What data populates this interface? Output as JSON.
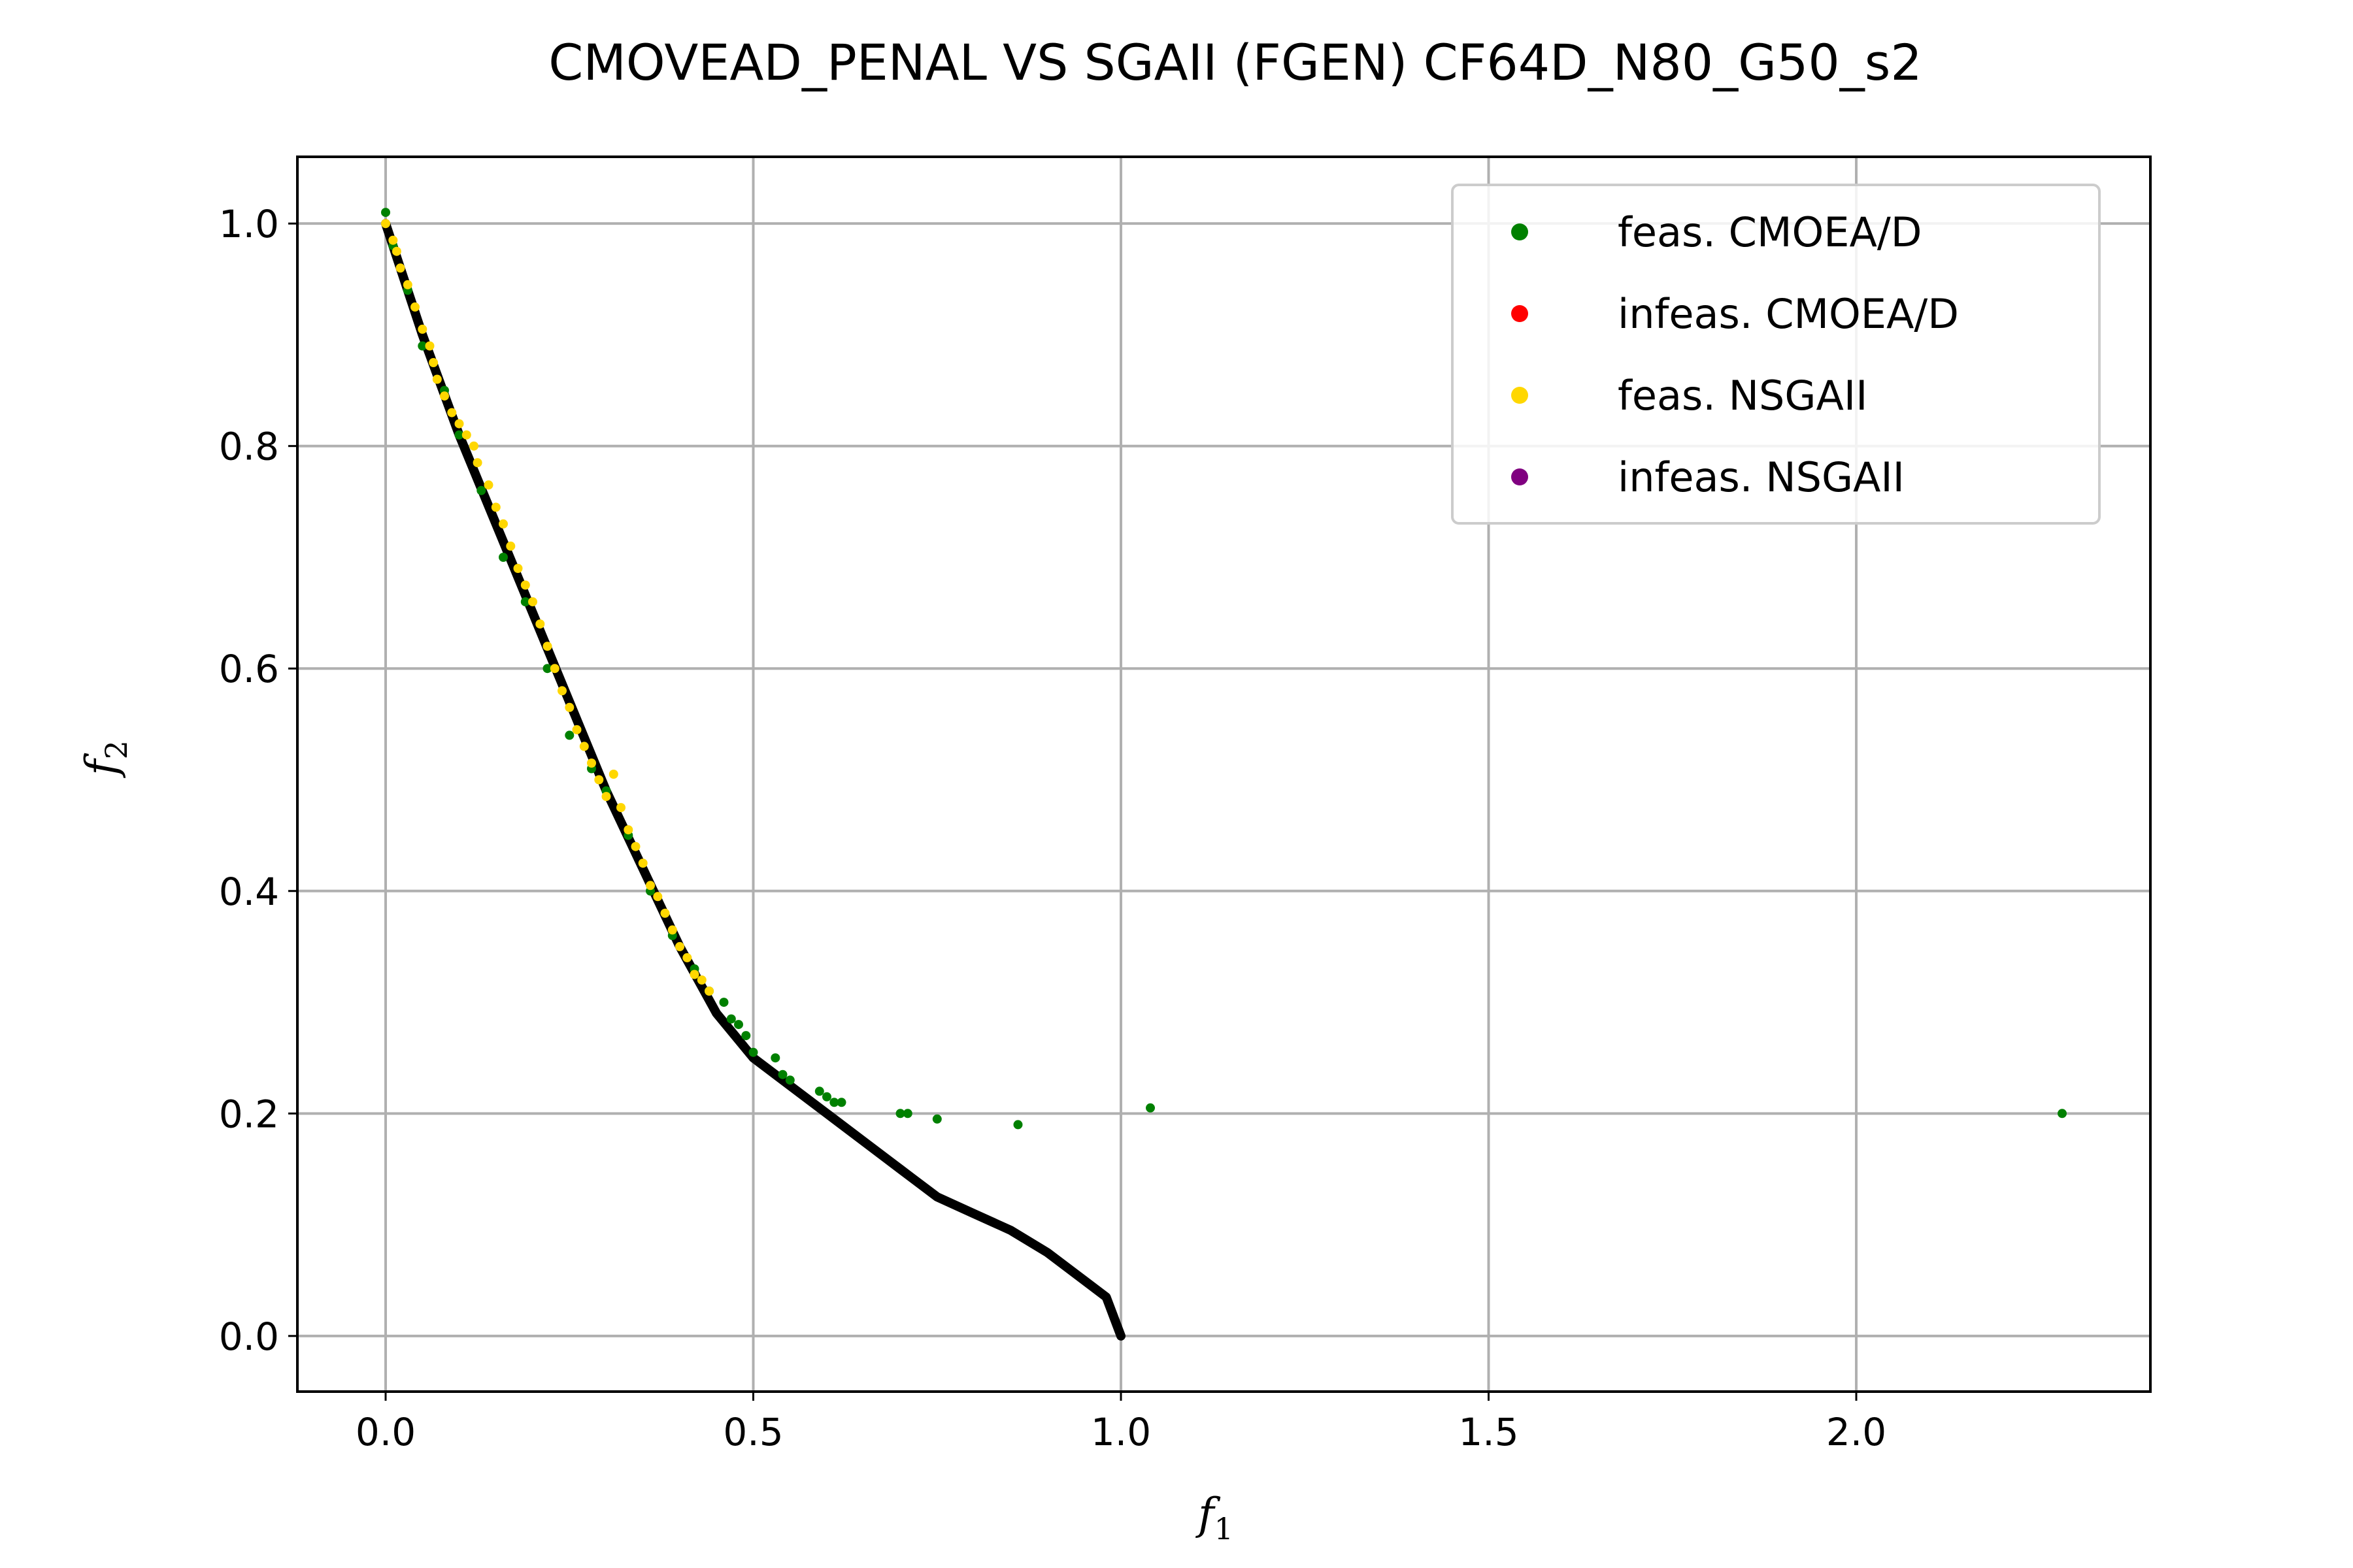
{
  "chart_data": {
    "type": "scatter",
    "title": "CMOVEAD_PENAL VS SGAII (FGEN) CF64D_N80_G50_s2",
    "xlabel": "f1",
    "ylabel": "f2",
    "xlim": [
      -0.12,
      2.4
    ],
    "ylim": [
      -0.05,
      1.06
    ],
    "x_ticks": [
      0.0,
      0.5,
      1.0,
      1.5,
      2.0
    ],
    "x_tick_labels": [
      "0.0",
      "0.5",
      "1.0",
      "1.5",
      "2.0"
    ],
    "y_ticks": [
      0.0,
      0.2,
      0.4,
      0.6,
      0.8,
      1.0
    ],
    "y_tick_labels": [
      "0.0",
      "0.2",
      "0.4",
      "0.6",
      "0.8",
      "1.0"
    ],
    "grid": true,
    "legend_position": "top-right",
    "pareto_front": {
      "color": "#000000",
      "points": [
        [
          0.0,
          1.0
        ],
        [
          0.05,
          0.9
        ],
        [
          0.1,
          0.81
        ],
        [
          0.15,
          0.73
        ],
        [
          0.2,
          0.65
        ],
        [
          0.25,
          0.57
        ],
        [
          0.3,
          0.49
        ],
        [
          0.35,
          0.42
        ],
        [
          0.4,
          0.35
        ],
        [
          0.45,
          0.29
        ],
        [
          0.5,
          0.25
        ],
        [
          0.55,
          0.225
        ],
        [
          0.6,
          0.2
        ],
        [
          0.65,
          0.175
        ],
        [
          0.7,
          0.15
        ],
        [
          0.75,
          0.125
        ],
        [
          0.8,
          0.11
        ],
        [
          0.85,
          0.095
        ],
        [
          0.9,
          0.075
        ],
        [
          0.95,
          0.05
        ],
        [
          0.98,
          0.035
        ],
        [
          1.0,
          0.0
        ]
      ]
    },
    "series": [
      {
        "name": "feas. CMOEA/D",
        "color": "#008000",
        "points": [
          [
            0.0,
            1.01
          ],
          [
            0.01,
            0.98
          ],
          [
            0.03,
            0.94
          ],
          [
            0.05,
            0.89
          ],
          [
            0.08,
            0.85
          ],
          [
            0.1,
            0.81
          ],
          [
            0.13,
            0.76
          ],
          [
            0.16,
            0.7
          ],
          [
            0.19,
            0.66
          ],
          [
            0.22,
            0.6
          ],
          [
            0.25,
            0.54
          ],
          [
            0.28,
            0.51
          ],
          [
            0.3,
            0.49
          ],
          [
            0.33,
            0.45
          ],
          [
            0.36,
            0.4
          ],
          [
            0.39,
            0.36
          ],
          [
            0.42,
            0.33
          ],
          [
            0.44,
            0.31
          ],
          [
            0.46,
            0.3
          ],
          [
            0.47,
            0.285
          ],
          [
            0.48,
            0.28
          ],
          [
            0.49,
            0.27
          ],
          [
            0.5,
            0.255
          ],
          [
            0.53,
            0.25
          ],
          [
            0.54,
            0.235
          ],
          [
            0.55,
            0.23
          ],
          [
            0.59,
            0.22
          ],
          [
            0.6,
            0.215
          ],
          [
            0.61,
            0.21
          ],
          [
            0.62,
            0.21
          ],
          [
            0.7,
            0.2
          ],
          [
            0.71,
            0.2
          ],
          [
            0.75,
            0.195
          ],
          [
            0.86,
            0.19
          ],
          [
            1.04,
            0.205
          ],
          [
            2.28,
            0.2
          ]
        ]
      },
      {
        "name": "infeas. CMOEA/D",
        "color": "#ff0000",
        "points": []
      },
      {
        "name": "feas. NSGAII",
        "color": "#ffd700",
        "points": [
          [
            0.0,
            1.0
          ],
          [
            0.01,
            0.985
          ],
          [
            0.015,
            0.975
          ],
          [
            0.02,
            0.96
          ],
          [
            0.03,
            0.945
          ],
          [
            0.04,
            0.925
          ],
          [
            0.05,
            0.905
          ],
          [
            0.06,
            0.89
          ],
          [
            0.065,
            0.875
          ],
          [
            0.07,
            0.86
          ],
          [
            0.08,
            0.845
          ],
          [
            0.09,
            0.83
          ],
          [
            0.1,
            0.82
          ],
          [
            0.11,
            0.81
          ],
          [
            0.12,
            0.8
          ],
          [
            0.125,
            0.785
          ],
          [
            0.14,
            0.765
          ],
          [
            0.15,
            0.745
          ],
          [
            0.16,
            0.73
          ],
          [
            0.17,
            0.71
          ],
          [
            0.18,
            0.69
          ],
          [
            0.19,
            0.675
          ],
          [
            0.2,
            0.66
          ],
          [
            0.21,
            0.64
          ],
          [
            0.22,
            0.62
          ],
          [
            0.23,
            0.6
          ],
          [
            0.24,
            0.58
          ],
          [
            0.25,
            0.565
          ],
          [
            0.26,
            0.545
          ],
          [
            0.27,
            0.53
          ],
          [
            0.28,
            0.515
          ],
          [
            0.29,
            0.5
          ],
          [
            0.3,
            0.485
          ],
          [
            0.31,
            0.505
          ],
          [
            0.32,
            0.475
          ],
          [
            0.33,
            0.455
          ],
          [
            0.34,
            0.44
          ],
          [
            0.35,
            0.425
          ],
          [
            0.36,
            0.405
          ],
          [
            0.37,
            0.395
          ],
          [
            0.38,
            0.38
          ],
          [
            0.39,
            0.365
          ],
          [
            0.4,
            0.35
          ],
          [
            0.41,
            0.34
          ],
          [
            0.42,
            0.325
          ],
          [
            0.43,
            0.32
          ],
          [
            0.44,
            0.31
          ]
        ]
      },
      {
        "name": "infeas. NSGAII",
        "color": "#800080",
        "points": []
      }
    ]
  }
}
